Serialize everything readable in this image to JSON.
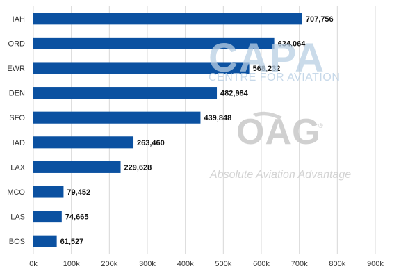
{
  "chart_data": {
    "type": "bar",
    "orientation": "horizontal",
    "categories": [
      "IAH",
      "ORD",
      "EWR",
      "DEN",
      "SFO",
      "IAD",
      "LAX",
      "MCO",
      "LAS",
      "BOS"
    ],
    "values": [
      707756,
      634064,
      568232,
      482984,
      439848,
      263460,
      229628,
      79452,
      74665,
      61527
    ],
    "value_labels": [
      "707,756",
      "634,064",
      "568,232",
      "482,984",
      "439,848",
      "263,460",
      "229,628",
      "79,452",
      "74,665",
      "61,527"
    ],
    "xlim": [
      0,
      900000
    ],
    "x_ticks": [
      0,
      100000,
      200000,
      300000,
      400000,
      500000,
      600000,
      700000,
      800000,
      900000
    ],
    "x_tick_labels": [
      "0k",
      "100k",
      "200k",
      "300k",
      "400k",
      "500k",
      "600k",
      "700k",
      "800k",
      "900k"
    ],
    "title": "",
    "xlabel": "",
    "ylabel": "",
    "grid": true,
    "bar_color": "#0b51a1",
    "grid_color": "#d8d8d8"
  },
  "watermarks": {
    "capa_logo": "CAPA",
    "capa_tagline": "CENTRE FOR AVIATION",
    "oag_logo": "OAG",
    "oag_tagline": "Absolute Aviation Advantage",
    "oag_registered": "®"
  }
}
